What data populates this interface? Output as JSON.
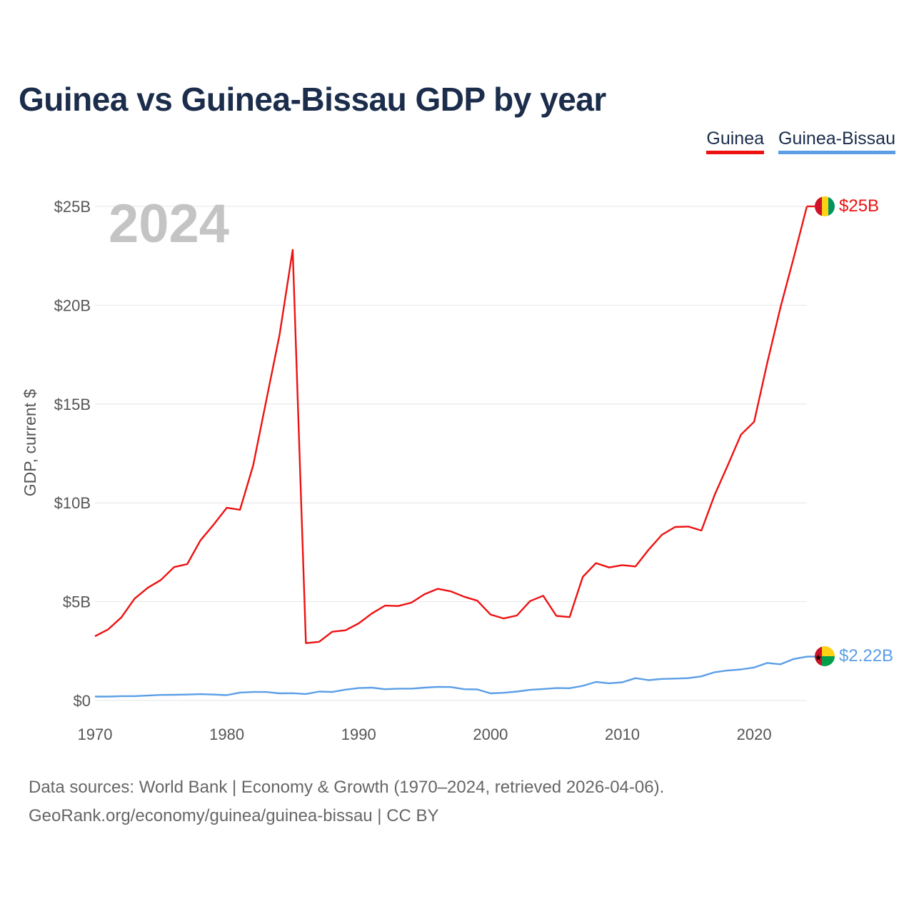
{
  "chart_data": {
    "type": "line",
    "title": "Guinea vs Guinea-Bissau GDP by year",
    "ylabel": "GDP, current $",
    "xlabel": "",
    "year_overlay": "2024",
    "x": [
      1970,
      1971,
      1972,
      1973,
      1974,
      1975,
      1976,
      1977,
      1978,
      1979,
      1980,
      1981,
      1982,
      1983,
      1984,
      1985,
      1986,
      1987,
      1988,
      1989,
      1990,
      1991,
      1992,
      1993,
      1994,
      1995,
      1996,
      1997,
      1998,
      1999,
      2000,
      2001,
      2002,
      2003,
      2004,
      2005,
      2006,
      2007,
      2008,
      2009,
      2010,
      2011,
      2012,
      2013,
      2014,
      2015,
      2016,
      2017,
      2018,
      2019,
      2020,
      2021,
      2022,
      2023,
      2024
    ],
    "xlim": [
      1970,
      2024
    ],
    "ylim": [
      0,
      25
    ],
    "x_ticks": [
      1970,
      1980,
      1990,
      2000,
      2010,
      2020
    ],
    "y_ticks": [
      0,
      5,
      10,
      15,
      20,
      25
    ],
    "y_tick_labels": [
      "$0",
      "$5B",
      "$10B",
      "$15B",
      "$20B",
      "$25B"
    ],
    "grid": true,
    "legend_position": "top-right",
    "series": [
      {
        "name": "Guinea",
        "color": "#ee1111",
        "end_label": "$25B",
        "values": [
          3.25,
          3.6,
          4.2,
          5.15,
          5.7,
          6.1,
          6.75,
          6.9,
          8.1,
          8.9,
          9.75,
          9.65,
          11.9,
          15.2,
          18.5,
          22.8,
          2.9,
          2.97,
          3.48,
          3.55,
          3.9,
          4.4,
          4.8,
          4.78,
          4.95,
          5.38,
          5.65,
          5.52,
          5.25,
          5.05,
          4.35,
          4.15,
          4.3,
          5.03,
          5.3,
          4.28,
          4.22,
          6.25,
          6.95,
          6.73,
          6.85,
          6.78,
          7.63,
          8.38,
          8.78,
          8.8,
          8.6,
          10.4,
          11.9,
          13.45,
          14.1,
          17.1,
          19.9,
          22.4,
          25.0
        ]
      },
      {
        "name": "Guinea-Bissau",
        "color": "#5b9ee6",
        "end_label": "$2.22B",
        "values": [
          0.2,
          0.2,
          0.22,
          0.22,
          0.25,
          0.28,
          0.29,
          0.3,
          0.32,
          0.3,
          0.27,
          0.4,
          0.43,
          0.43,
          0.36,
          0.37,
          0.33,
          0.45,
          0.43,
          0.55,
          0.63,
          0.65,
          0.57,
          0.6,
          0.6,
          0.65,
          0.69,
          0.68,
          0.57,
          0.56,
          0.36,
          0.39,
          0.45,
          0.54,
          0.58,
          0.63,
          0.62,
          0.74,
          0.94,
          0.87,
          0.92,
          1.13,
          1.03,
          1.09,
          1.11,
          1.13,
          1.22,
          1.43,
          1.52,
          1.57,
          1.67,
          1.9,
          1.83,
          2.1,
          2.22
        ]
      }
    ]
  },
  "source": {
    "line1": "Data sources: World Bank | Economy & Growth (1970–2024, retrieved 2026-04-06).",
    "line2": "GeoRank.org/economy/guinea/guinea-bissau | CC BY"
  }
}
